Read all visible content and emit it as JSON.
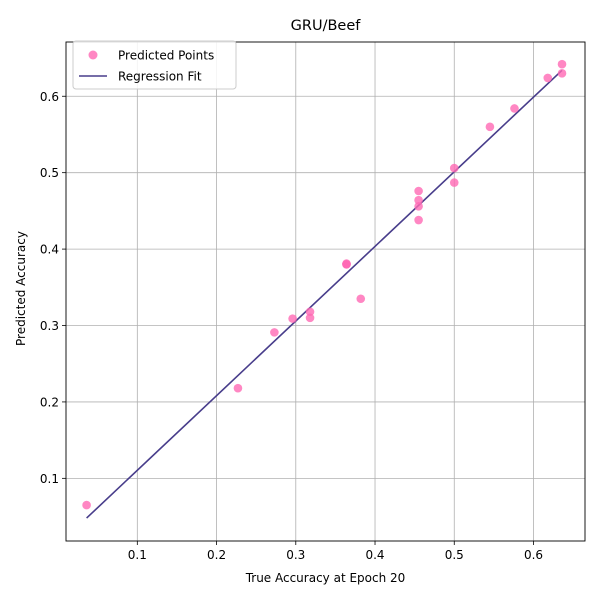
{
  "chart_data": {
    "type": "scatter",
    "title": "GRU/Beef",
    "xlabel": "True Accuracy at Epoch 20",
    "ylabel": "Predicted Accuracy",
    "xlim": [
      0.01,
      0.665
    ],
    "ylim": [
      0.018,
      0.671
    ],
    "xticks": [
      "0.1",
      "0.2",
      "0.3",
      "0.4",
      "0.5",
      "0.6"
    ],
    "yticks": [
      "0.1",
      "0.2",
      "0.3",
      "0.4",
      "0.5",
      "0.6"
    ],
    "grid": true,
    "legend_position": "top-left",
    "series": [
      {
        "name": "Predicted Points",
        "kind": "scatter",
        "color": "#ff69b4",
        "points": [
          [
            0.036,
            0.065
          ],
          [
            0.227,
            0.218
          ],
          [
            0.273,
            0.291
          ],
          [
            0.296,
            0.309
          ],
          [
            0.318,
            0.318
          ],
          [
            0.318,
            0.31
          ],
          [
            0.364,
            0.381
          ],
          [
            0.364,
            0.38
          ],
          [
            0.364,
            0.38
          ],
          [
            0.382,
            0.335
          ],
          [
            0.455,
            0.476
          ],
          [
            0.455,
            0.464
          ],
          [
            0.455,
            0.456
          ],
          [
            0.455,
            0.438
          ],
          [
            0.5,
            0.506
          ],
          [
            0.5,
            0.487
          ],
          [
            0.545,
            0.56
          ],
          [
            0.576,
            0.584
          ],
          [
            0.618,
            0.624
          ],
          [
            0.636,
            0.642
          ],
          [
            0.636,
            0.63
          ]
        ]
      },
      {
        "name": "Regression Fit",
        "kind": "line",
        "color": "#483d8b",
        "points": [
          [
            0.036,
            0.048
          ],
          [
            0.636,
            0.634
          ]
        ]
      }
    ]
  }
}
